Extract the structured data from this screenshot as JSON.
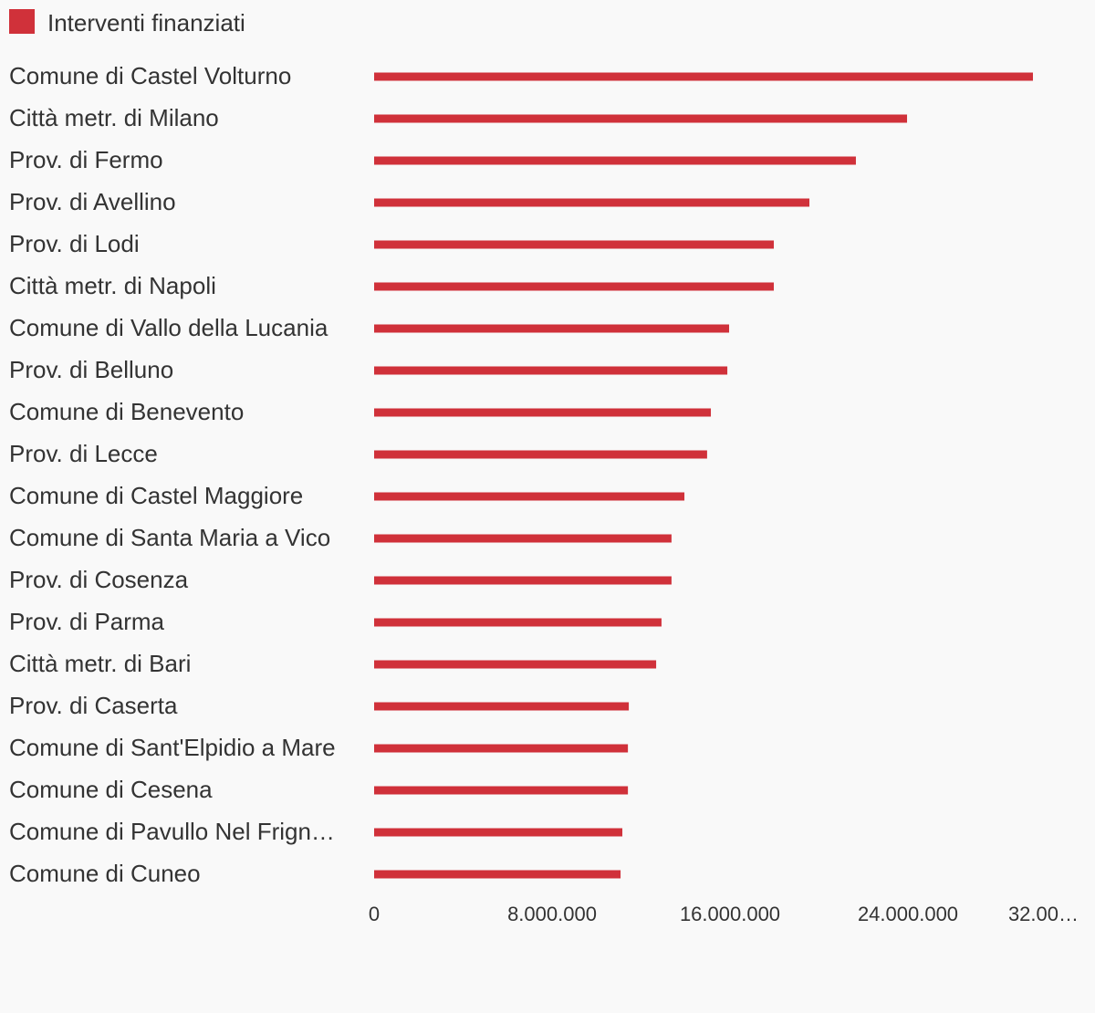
{
  "chart_data": {
    "type": "bar",
    "orientation": "horizontal",
    "categories": [
      "Comune di Castel Volturno",
      "Città metr. di Milano",
      "Prov. di Fermo",
      "Prov. di Avellino",
      "Prov. di Lodi",
      "Città metr. di Napoli",
      "Comune di Vallo della Lucania",
      "Prov. di Belluno",
      "Comune di Benevento",
      "Prov. di Lecce",
      "Comune di Castel Maggiore",
      "Comune di Santa Maria a Vico",
      "Prov. di Cosenza",
      "Prov. di Parma",
      "Città metr. di Bari",
      "Prov. di Caserta",
      "Comune di Sant'Elpidio a Mare",
      "Comune di Cesena",
      "Comune di Pavullo Nel Frign…",
      "Comune di Cuneo"
    ],
    "series": [
      {
        "name": "Interventi finanziati",
        "color": "#d0313a",
        "values": [
          29620000,
          23960000,
          21660000,
          19570000,
          17970000,
          17970000,
          15960000,
          15880000,
          15140000,
          14970000,
          13950000,
          13370000,
          13370000,
          12920000,
          12680000,
          11450000,
          11410000,
          11410000,
          11160000,
          11080000
        ]
      }
    ],
    "xlim": [
      0,
      32000000
    ],
    "xticks": [
      0,
      {
        "value": 8000000,
        "label": "8.000.000"
      },
      {
        "value": 16000000,
        "label": "16.000.000"
      },
      {
        "value": 24000000,
        "label": "24.000.000"
      },
      {
        "value": 32000000,
        "label": "32.00…"
      }
    ],
    "grid": false,
    "legend": "top-left"
  }
}
